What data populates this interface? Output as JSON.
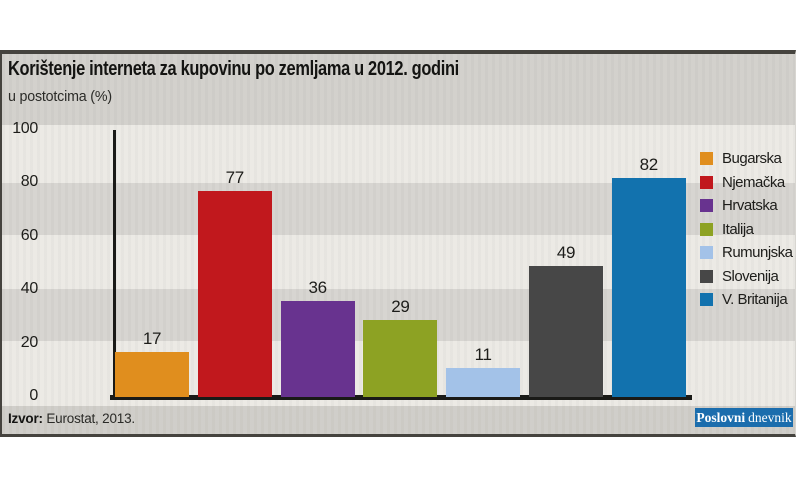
{
  "title": "Korištenje interneta za kupovinu po zemljama u 2012. godini",
  "subtitle": "u postotcima (%)",
  "source": {
    "label": "Izvor:",
    "text": "Eurostat, 2013."
  },
  "logo": {
    "bold": "Poslovni",
    "regular": "dnevnik",
    "background": "#1b6dad"
  },
  "chart_data": {
    "type": "bar",
    "title": "Korištenje interneta za kupovinu po zemljama u 2012. godini",
    "unit_label": "u postotcima (%)",
    "categories": [
      "Bugarska",
      "Njemačka",
      "Hrvatska",
      "Italija",
      "Rumunjska",
      "Slovenija",
      "V. Britanija"
    ],
    "values": [
      17,
      77,
      36,
      29,
      11,
      49,
      82
    ],
    "colors": [
      "#e08e1e",
      "#c1181d",
      "#68338f",
      "#8da223",
      "#a3c2e8",
      "#474747",
      "#1272ae"
    ],
    "ylim": [
      0,
      100
    ],
    "yticks": [
      0,
      20,
      40,
      60,
      80,
      100
    ],
    "grid": "alternating-horizontal-bands",
    "legend_position": "right",
    "value_labels": "above-bars",
    "source": "Izvor: Eurostat, 2013."
  }
}
